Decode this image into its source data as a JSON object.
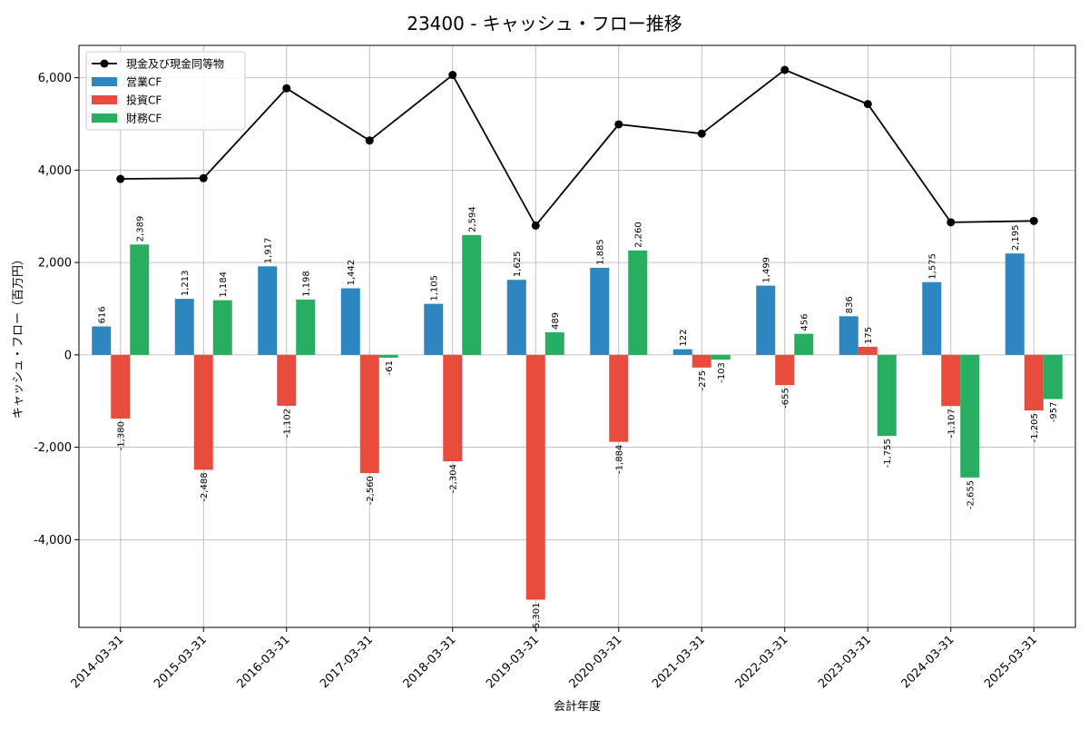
{
  "chart_data": {
    "type": "bar",
    "title": "23400 - キャッシュ・フロー推移",
    "xlabel": "会計年度",
    "ylabel": "キャッシュ・フロー（百万円）",
    "ylim": [
      -5900,
      6700
    ],
    "yticks": [
      -4000,
      -2000,
      0,
      2000,
      4000,
      6000
    ],
    "ytick_labels": [
      "-4,000",
      "-2,000",
      "0",
      "2,000",
      "4,000",
      "6,000"
    ],
    "grid": true,
    "legend_position": "top-left",
    "categories": [
      "2014-03-31",
      "2015-03-31",
      "2016-03-31",
      "2017-03-31",
      "2018-03-31",
      "2019-03-31",
      "2020-03-31",
      "2021-03-31",
      "2022-03-31",
      "2023-03-31",
      "2024-03-31",
      "2025-03-31"
    ],
    "series": [
      {
        "name": "営業CF",
        "type": "bar",
        "color": "#2e86c1",
        "values": [
          616,
          1213,
          1917,
          1442,
          1105,
          1625,
          1885,
          122,
          1499,
          836,
          1575,
          2195
        ],
        "labels": [
          "616",
          "1,213",
          "1,917",
          "1,442",
          "1,105",
          "1,625",
          "1,885",
          "122",
          "1,499",
          "836",
          "1,575",
          "2,195"
        ]
      },
      {
        "name": "投資CF",
        "type": "bar",
        "color": "#e74c3c",
        "values": [
          -1380,
          -2488,
          -1102,
          -2560,
          -2304,
          -5301,
          -1884,
          -275,
          -655,
          175,
          -1107,
          -1205
        ],
        "labels": [
          "-1,380",
          "-2,488",
          "-1,102",
          "-2,560",
          "-2,304",
          "-5,301",
          "-1,884",
          "-275",
          "-655",
          "175",
          "-1,107",
          "-1,205"
        ]
      },
      {
        "name": "財務CF",
        "type": "bar",
        "color": "#27ae60",
        "values": [
          2389,
          1184,
          1198,
          -61,
          2594,
          489,
          2260,
          -103,
          456,
          -1755,
          -2655,
          -957
        ],
        "labels": [
          "2,389",
          "1,184",
          "1,198",
          "-61",
          "2,594",
          "489",
          "2,260",
          "-103",
          "456",
          "-1,755",
          "-2,655",
          "-957"
        ]
      },
      {
        "name": "現金及び現金同等物",
        "type": "line",
        "color": "#000000",
        "values": [
          3810,
          3825,
          5770,
          4640,
          6060,
          2800,
          4990,
          4790,
          6170,
          5430,
          2870,
          2900
        ]
      }
    ]
  }
}
